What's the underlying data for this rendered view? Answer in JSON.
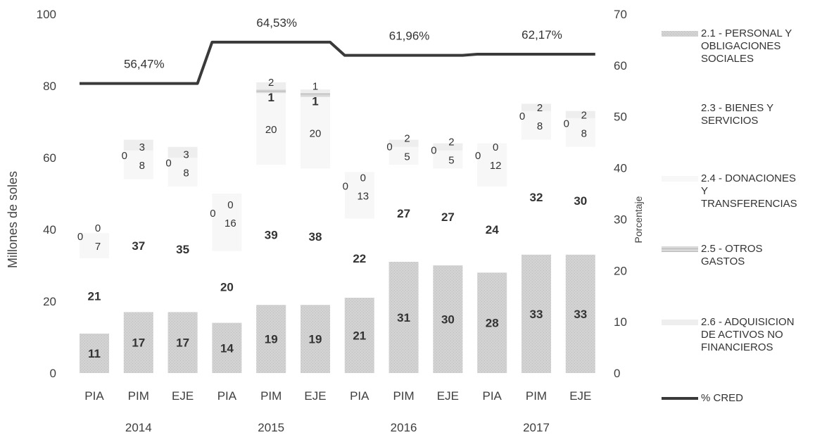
{
  "chart_data": {
    "type": "bar",
    "stacked": true,
    "categories": [
      "PIA",
      "PIM",
      "EJE",
      "PIA",
      "PIM",
      "EJE",
      "PIA",
      "PIM",
      "EJE",
      "PIA",
      "PIM",
      "EJE"
    ],
    "years": [
      "2014",
      "2015",
      "2016",
      "2017"
    ],
    "ylabel": "Millones de soles",
    "ylabel_right": "Porcentaje",
    "ylim": [
      0,
      100
    ],
    "ylim_right": [
      0,
      70
    ],
    "yticks": [
      "100",
      "80",
      "60",
      "40",
      "20",
      "0"
    ],
    "yticks_right": [
      "70",
      "60",
      "50",
      "40",
      "30",
      "20",
      "10",
      "0"
    ],
    "grid": false,
    "legend_position": "right",
    "series": [
      {
        "name": "2.1 - PERSONAL Y OBLIGACIONES SOCIALES",
        "color": "#cfcfcf",
        "values": [
          11,
          17,
          17,
          14,
          19,
          19,
          21,
          31,
          30,
          28,
          33,
          33
        ],
        "labels": [
          "11",
          "17",
          "17",
          "14",
          "19",
          "19",
          "21",
          "31",
          "30",
          "28",
          "33",
          "33"
        ]
      },
      {
        "name": "2.3 - BIENES Y SERVICIOS",
        "color": "#ffffff",
        "values": [
          21,
          37,
          35,
          20,
          39,
          38,
          22,
          27,
          27,
          24,
          32,
          30
        ],
        "labels": [
          "21",
          "37",
          "35",
          "20",
          "39",
          "38",
          "22",
          "27",
          "27",
          "24",
          "32",
          "30"
        ]
      },
      {
        "name": "2.4 - DONACIONES Y TRANSFERENCIAS",
        "color": "#f6f6f6",
        "values": [
          7,
          8,
          8,
          16,
          20,
          20,
          13,
          5,
          5,
          12,
          8,
          8
        ],
        "labels": [
          "7",
          "8",
          "8",
          "16",
          "20",
          "20",
          "13",
          "5",
          "5",
          "12",
          "8",
          "8"
        ]
      },
      {
        "name": "2.5 - OTROS GASTOS",
        "color": "#d9d9d9",
        "values": [
          0,
          0,
          0,
          0,
          1,
          1,
          0,
          0,
          0,
          0,
          0,
          0
        ],
        "labels": [
          "0",
          "0",
          "0",
          "0",
          "1",
          "1",
          "0",
          "0",
          "0",
          "0",
          "0",
          "0"
        ]
      },
      {
        "name": "2.6 - ADQUISICION DE ACTIVOS NO FINANCIEROS",
        "color": "#ededed",
        "values": [
          0,
          3,
          3,
          0,
          2,
          1,
          0,
          2,
          2,
          0,
          2,
          2
        ],
        "labels": [
          "0",
          "3",
          "3",
          "0",
          "2",
          "1",
          "0",
          "2",
          "2",
          "0",
          "2",
          "2"
        ]
      }
    ],
    "line": {
      "name": "% CRED",
      "color": "#3a3a3a",
      "values": [
        56.47,
        56.47,
        56.47,
        64.53,
        64.53,
        64.53,
        61.96,
        61.96,
        61.96,
        62.17,
        62.17,
        62.17
      ]
    },
    "annotations": [
      "56,47%",
      "64,53%",
      "61,96%",
      "62,17%"
    ],
    "legend": [
      [
        "2.1 - PERSONAL Y",
        "OBLIGACIONES",
        "SOCIALES"
      ],
      [
        "2.3 - BIENES Y",
        "SERVICIOS"
      ],
      [
        "2.4 - DONACIONES",
        "Y",
        "TRANSFERENCIAS"
      ],
      [
        "2.5 - OTROS",
        "GASTOS"
      ],
      [
        "2.6 - ADQUISICION",
        "DE ACTIVOS NO",
        "FINANCIEROS"
      ],
      [
        "% CRED"
      ]
    ]
  }
}
